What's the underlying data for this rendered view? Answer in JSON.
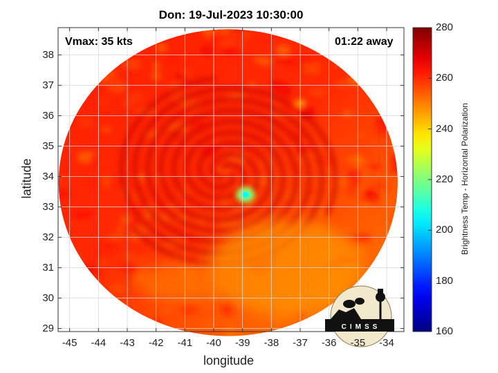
{
  "title": "Don: 19-Jul-2023 10:30:00",
  "vmax_label": "Vmax: 35 kts",
  "time_away": "01:22 away",
  "logo_text": "CIMSS",
  "chart_data": {
    "type": "heatmap",
    "title": "Don: 19-Jul-2023 10:30:00",
    "xlabel": "longitude",
    "ylabel": "latitude",
    "x_ticks": [
      -45,
      -44,
      -43,
      -42,
      -41,
      -40,
      -39,
      -38,
      -37,
      -36,
      -35,
      -34
    ],
    "y_ticks": [
      29,
      30,
      31,
      32,
      33,
      34,
      35,
      36,
      37,
      38
    ],
    "xlim": [
      -45.4,
      -33.4
    ],
    "ylim": [
      28.9,
      38.9
    ],
    "grid": true,
    "colorbar": {
      "label": "Brightness Temp - Horizontal Polarization",
      "ticks": [
        160,
        180,
        200,
        220,
        240,
        260,
        280
      ],
      "range": [
        160,
        280
      ],
      "colormap": "jet"
    },
    "swath_center": [
      -39.5,
      33.8
    ],
    "storm_center": [
      -39.6,
      34.1
    ],
    "cold_features": [
      {
        "lon": -38.9,
        "lat": 33.4,
        "tb": 205
      },
      {
        "lon": -37.0,
        "lat": 36.4,
        "tb": 240
      },
      {
        "lon": -33.6,
        "lat": 35.0,
        "tb": 238
      }
    ]
  }
}
